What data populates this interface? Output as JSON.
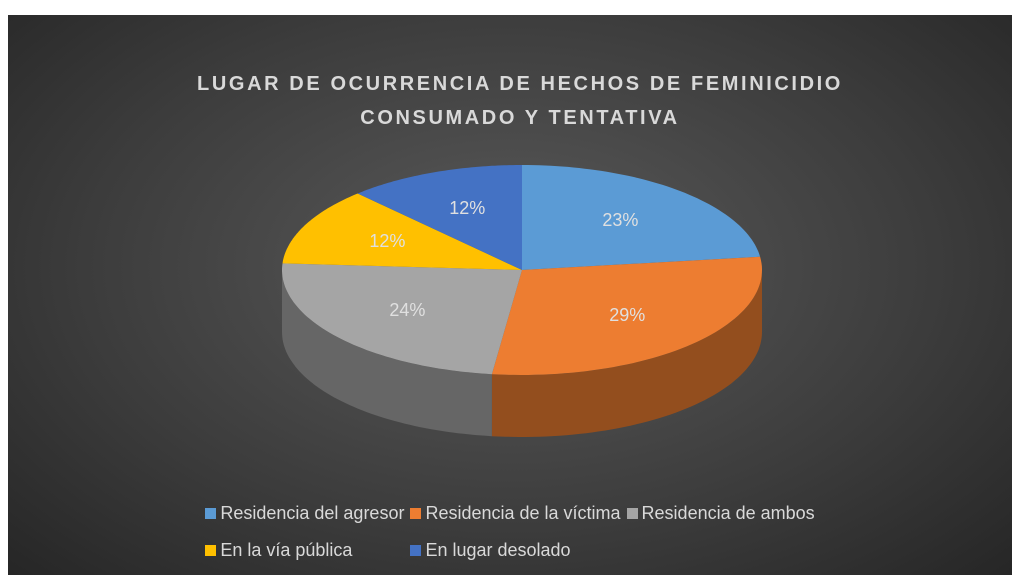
{
  "chart_data": {
    "type": "pie",
    "title": "LUGAR DE OCURRENCIA DE HECHOS DE FEMINICIDIO CONSUMADO Y TENTATIVA",
    "categories": [
      "Residencia del agresor",
      "Residencia de la víctima",
      "Residencia de ambos",
      "En la vía pública",
      "En lugar desolado"
    ],
    "values": [
      23,
      29,
      24,
      12,
      12
    ],
    "value_labels": [
      "23%",
      "29%",
      "24%",
      "12%",
      "12%"
    ],
    "colors": [
      "#5b9bd5",
      "#ed7d31",
      "#a5a5a5",
      "#ffc000",
      "#4472c4"
    ],
    "legend": "bottom"
  }
}
